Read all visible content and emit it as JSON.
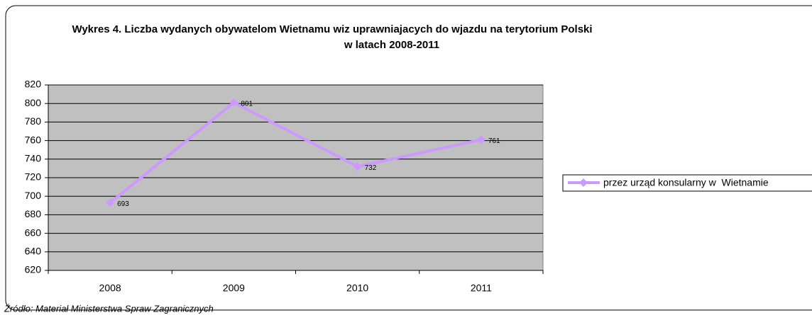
{
  "chart_data": {
    "type": "line",
    "title": [
      "Wykres 4. Liczba wydanych obywatelom Wietnamu wiz uprawniajacych do wjazdu na terytorium Polski",
      "w latach 2008-2011"
    ],
    "source": "Źródło: Materiał Ministerstwa Spraw Zagranicznych",
    "categories": [
      "2008",
      "2009",
      "2010",
      "2011"
    ],
    "series": [
      {
        "name": "przez urząd konsularny w  Wietnamie",
        "color": "#cc99ff",
        "values": [
          693,
          801,
          732,
          761
        ]
      }
    ],
    "ylim": [
      620,
      820
    ],
    "yticks": [
      620,
      640,
      660,
      680,
      700,
      720,
      740,
      760,
      780,
      800,
      820
    ],
    "grid": true,
    "legend": "right"
  }
}
